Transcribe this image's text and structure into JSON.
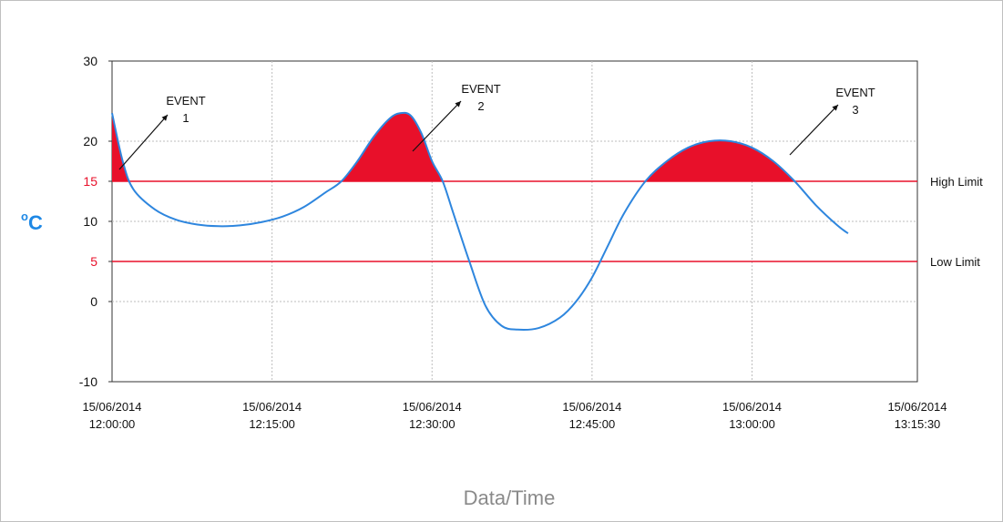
{
  "chart_data": {
    "type": "line",
    "ylabel_unit": "°C",
    "ylabel_parts": {
      "degree": "o",
      "unit": "C"
    },
    "xlabel": "Data/Time",
    "ylim": [
      -10,
      30
    ],
    "y_ticks": [
      {
        "value": 30,
        "label": "30",
        "highlight": false
      },
      {
        "value": 20,
        "label": "20",
        "highlight": false
      },
      {
        "value": 15,
        "label": "15",
        "highlight": true
      },
      {
        "value": 10,
        "label": "10",
        "highlight": false
      },
      {
        "value": 5,
        "label": "5",
        "highlight": true
      },
      {
        "value": 0,
        "label": "0",
        "highlight": false
      },
      {
        "value": -10,
        "label": "-10",
        "highlight": false
      }
    ],
    "x_ticks": [
      {
        "date": "15/06/2014",
        "time": "12:00:00"
      },
      {
        "date": "15/06/2014",
        "time": "12:15:00"
      },
      {
        "date": "15/06/2014",
        "time": "12:30:00"
      },
      {
        "date": "15/06/2014",
        "time": "12:45:00"
      },
      {
        "date": "15/06/2014",
        "time": "13:00:00"
      },
      {
        "date": "15/06/2014",
        "time": "13:15:30"
      }
    ],
    "limits": [
      {
        "name": "High Limit",
        "value": 15
      },
      {
        "name": "Low Limit",
        "value": 5
      }
    ],
    "series": [
      {
        "points": [
          [
            0,
            23.5
          ],
          [
            1,
            17.5
          ],
          [
            2,
            14.0
          ],
          [
            4,
            11.5
          ],
          [
            6,
            10.2
          ],
          [
            8,
            9.6
          ],
          [
            10,
            9.4
          ],
          [
            12,
            9.5
          ],
          [
            14,
            9.9
          ],
          [
            16,
            10.6
          ],
          [
            18,
            11.8
          ],
          [
            20,
            13.6
          ],
          [
            21.5,
            15.0
          ],
          [
            23,
            17.5
          ],
          [
            24.5,
            20.5
          ],
          [
            26,
            22.8
          ],
          [
            27,
            23.5
          ],
          [
            28,
            23.2
          ],
          [
            29,
            21.0
          ],
          [
            30,
            17.5
          ],
          [
            31,
            15.0
          ],
          [
            32,
            11.0
          ],
          [
            33.5,
            5.0
          ],
          [
            35,
            -0.5
          ],
          [
            36.5,
            -3.0
          ],
          [
            38,
            -3.5
          ],
          [
            40,
            -3.3
          ],
          [
            42,
            -2.0
          ],
          [
            43.5,
            0.0
          ],
          [
            45,
            3.0
          ],
          [
            46.5,
            7.0
          ],
          [
            48,
            11.0
          ],
          [
            50,
            15.0
          ],
          [
            52,
            17.5
          ],
          [
            54,
            19.2
          ],
          [
            56,
            20.0
          ],
          [
            58,
            20.0
          ],
          [
            60,
            19.2
          ],
          [
            62,
            17.5
          ],
          [
            64,
            15.0
          ],
          [
            66,
            12.0
          ],
          [
            68,
            9.5
          ],
          [
            69,
            8.5
          ]
        ]
      }
    ],
    "events": [
      {
        "label_line1": "EVENT",
        "label_line2": "1",
        "interval": [
          0,
          1.2
        ]
      },
      {
        "label_line1": "EVENT",
        "label_line2": "2",
        "interval": [
          21.5,
          31
        ]
      },
      {
        "label_line1": "EVENT",
        "label_line2": "3",
        "interval": [
          50,
          64
        ]
      }
    ],
    "grid": "dotted",
    "colors": {
      "line": "#2e86de",
      "event_fill": "#e8102a",
      "limit": "#e8102a",
      "unit": "#1e88e5"
    }
  }
}
